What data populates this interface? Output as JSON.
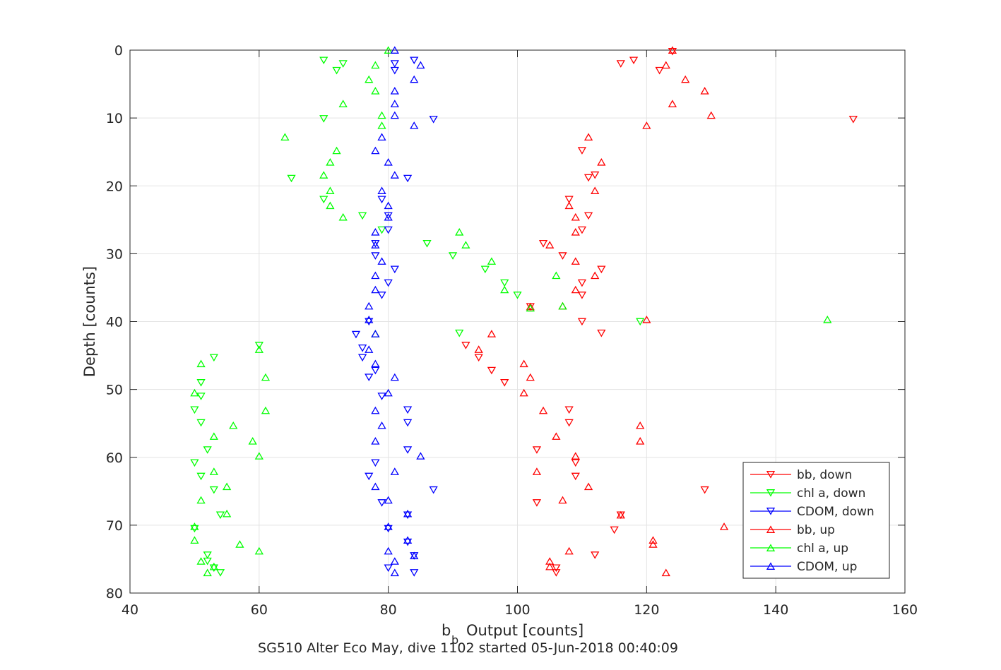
{
  "chart_data": {
    "type": "scatter",
    "xlabel": "Output [counts]",
    "xlabel_base": "b",
    "xlabel_sub": "b",
    "ylabel": "Depth [counts]",
    "caption": "SG510 Alter Eco May, dive 1102 started 05-Jun-2018 00:40:09",
    "xlim": [
      40,
      160
    ],
    "ylim": [
      0,
      80
    ],
    "y_reversed": true,
    "grid": true,
    "legend_position": "bottom-right",
    "x_ticks": [
      40,
      60,
      80,
      100,
      120,
      140,
      160
    ],
    "y_ticks": [
      0,
      10,
      20,
      30,
      40,
      50,
      60,
      70,
      80
    ],
    "series": [
      {
        "name": "bb, down",
        "color": "#ff0000",
        "marker": "down",
        "points": [
          [
            124,
            0.2
          ],
          [
            118,
            1.5
          ],
          [
            116,
            2.0
          ],
          [
            122,
            3.0
          ],
          [
            152,
            10.2
          ],
          [
            110,
            40.0
          ],
          [
            113,
            41.7
          ],
          [
            92,
            43.5
          ],
          [
            94,
            45.3
          ],
          [
            96,
            47.2
          ],
          [
            98,
            49.0
          ],
          [
            108,
            53.0
          ],
          [
            108,
            54.9
          ],
          [
            103,
            58.9
          ],
          [
            109,
            60.8
          ],
          [
            109,
            62.8
          ],
          [
            129,
            64.8
          ],
          [
            103,
            66.7
          ],
          [
            115,
            70.7
          ],
          [
            112,
            74.4
          ],
          [
            106,
            76.3
          ],
          [
            106,
            77.0
          ],
          [
            110,
            34.3
          ],
          [
            110,
            36.1
          ],
          [
            113,
            32.3
          ],
          [
            107,
            30.3
          ],
          [
            104,
            28.5
          ],
          [
            110,
            26.5
          ],
          [
            111,
            18.8
          ],
          [
            108,
            22.0
          ],
          [
            111,
            24.4
          ],
          [
            112,
            18.4
          ],
          [
            110,
            14.8
          ],
          [
            116,
            68.5
          ],
          [
            102,
            37.8
          ]
        ]
      },
      {
        "name": "chl a, down",
        "color": "#00ff00",
        "marker": "down",
        "points": [
          [
            70,
            1.5
          ],
          [
            73,
            2.0
          ],
          [
            72,
            3.0
          ],
          [
            70,
            10.1
          ],
          [
            65,
            18.9
          ],
          [
            70,
            22.0
          ],
          [
            76,
            24.4
          ],
          [
            79,
            26.5
          ],
          [
            86,
            28.5
          ],
          [
            90,
            30.3
          ],
          [
            95,
            32.3
          ],
          [
            98,
            34.3
          ],
          [
            100,
            36.1
          ],
          [
            119,
            40.0
          ],
          [
            91,
            41.7
          ],
          [
            60,
            43.5
          ],
          [
            53,
            45.3
          ],
          [
            51,
            49.0
          ],
          [
            51,
            51.0
          ],
          [
            50,
            53.0
          ],
          [
            51,
            54.9
          ],
          [
            52,
            58.9
          ],
          [
            50,
            60.8
          ],
          [
            51,
            62.8
          ],
          [
            53,
            64.8
          ],
          [
            54,
            68.5
          ],
          [
            50,
            70.5
          ],
          [
            52,
            74.4
          ],
          [
            52,
            75.3
          ],
          [
            53,
            76.3
          ],
          [
            54,
            77.0
          ]
        ]
      },
      {
        "name": "CDOM, down",
        "color": "#0000ff",
        "marker": "down",
        "points": [
          [
            84,
            1.5
          ],
          [
            81,
            2.0
          ],
          [
            81,
            3.0
          ],
          [
            87,
            10.2
          ],
          [
            83,
            18.9
          ],
          [
            79,
            22.0
          ],
          [
            80,
            24.4
          ],
          [
            80,
            26.5
          ],
          [
            78,
            28.5
          ],
          [
            78,
            30.3
          ],
          [
            81,
            32.3
          ],
          [
            80,
            34.3
          ],
          [
            79,
            36.1
          ],
          [
            77,
            40.0
          ],
          [
            75,
            41.9
          ],
          [
            76,
            43.9
          ],
          [
            76,
            45.3
          ],
          [
            78,
            47.2
          ],
          [
            77,
            48.2
          ],
          [
            79,
            51.0
          ],
          [
            83,
            53.0
          ],
          [
            83,
            54.9
          ],
          [
            83,
            58.9
          ],
          [
            78,
            60.8
          ],
          [
            77,
            62.8
          ],
          [
            87,
            64.8
          ],
          [
            79,
            66.7
          ],
          [
            83,
            68.5
          ],
          [
            80,
            70.5
          ],
          [
            83,
            72.5
          ],
          [
            84,
            74.5
          ],
          [
            80,
            76.3
          ],
          [
            84,
            77.0
          ]
        ]
      },
      {
        "name": "bb, up",
        "color": "#ff0000",
        "marker": "up",
        "points": [
          [
            124,
            0.0
          ],
          [
            123,
            2.2
          ],
          [
            126,
            4.3
          ],
          [
            129,
            6.0
          ],
          [
            124,
            7.9
          ],
          [
            130,
            9.6
          ],
          [
            120,
            11.1
          ],
          [
            111,
            12.8
          ],
          [
            113,
            16.5
          ],
          [
            112,
            20.7
          ],
          [
            108,
            22.9
          ],
          [
            109,
            24.6
          ],
          [
            109,
            26.8
          ],
          [
            105,
            28.7
          ],
          [
            109,
            31.1
          ],
          [
            112,
            33.2
          ],
          [
            109,
            35.3
          ],
          [
            102,
            37.8
          ],
          [
            107,
            37.7
          ],
          [
            120,
            39.7
          ],
          [
            96,
            41.8
          ],
          [
            94,
            44.1
          ],
          [
            101,
            46.2
          ],
          [
            102,
            48.2
          ],
          [
            101,
            50.5
          ],
          [
            104,
            53.1
          ],
          [
            119,
            55.3
          ],
          [
            106,
            56.9
          ],
          [
            119,
            57.6
          ],
          [
            109,
            59.8
          ],
          [
            103,
            62.1
          ],
          [
            111,
            64.3
          ],
          [
            107,
            66.3
          ],
          [
            116,
            68.5
          ],
          [
            132,
            70.2
          ],
          [
            121,
            72.2
          ],
          [
            121,
            72.8
          ],
          [
            108,
            73.8
          ],
          [
            105,
            75.3
          ],
          [
            105,
            76.1
          ],
          [
            123,
            77.0
          ]
        ]
      },
      {
        "name": "chl a, up",
        "color": "#00ff00",
        "marker": "up",
        "points": [
          [
            80,
            0.0
          ],
          [
            78,
            2.2
          ],
          [
            77,
            4.3
          ],
          [
            78,
            6.0
          ],
          [
            73,
            7.9
          ],
          [
            79,
            9.6
          ],
          [
            79,
            11.1
          ],
          [
            64,
            12.8
          ],
          [
            72,
            14.8
          ],
          [
            71,
            16.5
          ],
          [
            70,
            18.4
          ],
          [
            71,
            20.7
          ],
          [
            71,
            22.9
          ],
          [
            73,
            24.6
          ],
          [
            91,
            26.8
          ],
          [
            92,
            28.7
          ],
          [
            96,
            31.1
          ],
          [
            106,
            33.2
          ],
          [
            98,
            35.3
          ],
          [
            107,
            37.7
          ],
          [
            102,
            38.0
          ],
          [
            148,
            39.7
          ],
          [
            78,
            41.8
          ],
          [
            60,
            44.1
          ],
          [
            51,
            46.2
          ],
          [
            61,
            48.2
          ],
          [
            50,
            50.5
          ],
          [
            61,
            53.1
          ],
          [
            56,
            55.3
          ],
          [
            53,
            56.9
          ],
          [
            59,
            57.6
          ],
          [
            60,
            59.8
          ],
          [
            53,
            62.1
          ],
          [
            55,
            64.3
          ],
          [
            51,
            66.3
          ],
          [
            55,
            68.3
          ],
          [
            50,
            70.2
          ],
          [
            50,
            72.2
          ],
          [
            57,
            72.8
          ],
          [
            60,
            73.8
          ],
          [
            51,
            75.3
          ],
          [
            53,
            76.1
          ],
          [
            52,
            77.0
          ]
        ]
      },
      {
        "name": "CDOM, up",
        "color": "#0000ff",
        "marker": "up",
        "points": [
          [
            81,
            0.0
          ],
          [
            85,
            2.2
          ],
          [
            84,
            4.3
          ],
          [
            81,
            6.0
          ],
          [
            81,
            7.9
          ],
          [
            81,
            9.6
          ],
          [
            84,
            11.1
          ],
          [
            79,
            12.8
          ],
          [
            78,
            14.8
          ],
          [
            80,
            16.5
          ],
          [
            81,
            18.4
          ],
          [
            79,
            20.7
          ],
          [
            80,
            22.9
          ],
          [
            80,
            24.6
          ],
          [
            78,
            26.8
          ],
          [
            78,
            28.7
          ],
          [
            79,
            31.1
          ],
          [
            78,
            33.2
          ],
          [
            78,
            35.3
          ],
          [
            77,
            37.7
          ],
          [
            77,
            39.7
          ],
          [
            78,
            41.8
          ],
          [
            77,
            44.1
          ],
          [
            78,
            46.2
          ],
          [
            81,
            48.2
          ],
          [
            80,
            50.5
          ],
          [
            78,
            53.1
          ],
          [
            79,
            55.3
          ],
          [
            78,
            57.6
          ],
          [
            85,
            59.8
          ],
          [
            81,
            62.1
          ],
          [
            78,
            64.3
          ],
          [
            80,
            66.3
          ],
          [
            83,
            68.3
          ],
          [
            80,
            70.2
          ],
          [
            83,
            72.2
          ],
          [
            80,
            73.8
          ],
          [
            84,
            74.5
          ],
          [
            81,
            75.3
          ],
          [
            81,
            77.0
          ]
        ]
      }
    ]
  }
}
